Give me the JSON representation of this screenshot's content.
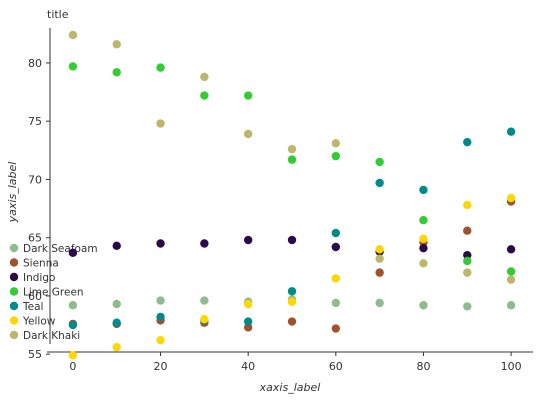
{
  "chart_data": {
    "type": "scatter",
    "title": "title",
    "xlabel": "xaxis_label",
    "ylabel": "yaxis_label",
    "xlim": [
      -5,
      105
    ],
    "ylim": [
      54.5,
      83
    ],
    "xticks": [
      0,
      20,
      40,
      60,
      80,
      100
    ],
    "yticks": [
      55,
      60,
      65,
      70,
      75,
      80
    ],
    "grid": false,
    "legend_placement": "left",
    "x": [
      0,
      10,
      20,
      30,
      40,
      50,
      60,
      70,
      80,
      90,
      100
    ],
    "series": [
      {
        "name": "Dark Seafoam",
        "color": "#8fbc8f",
        "values": [
          59.2,
          59.3,
          59.6,
          59.6,
          59.5,
          59.7,
          59.4,
          59.4,
          59.2,
          59.1,
          59.2
        ]
      },
      {
        "name": "Sienna",
        "color": "#a0522d",
        "values": [
          57.6,
          57.6,
          57.9,
          57.7,
          57.3,
          57.8,
          57.2,
          62.0,
          64.6,
          65.6,
          68.1
        ]
      },
      {
        "name": "Indigo",
        "color": "#2b0a4a",
        "values": [
          63.7,
          64.3,
          64.5,
          64.5,
          64.8,
          64.8,
          64.2,
          63.8,
          64.1,
          63.5,
          64.0
        ]
      },
      {
        "name": "Lime Green",
        "color": "#32cd32",
        "values": [
          79.7,
          79.2,
          79.6,
          77.2,
          77.2,
          71.7,
          72.0,
          71.5,
          66.5,
          63.0,
          62.1
        ]
      },
      {
        "name": "Teal",
        "color": "#008b8b",
        "values": [
          57.5,
          57.7,
          58.2,
          57.9,
          57.8,
          60.4,
          65.4,
          69.7,
          69.1,
          73.2,
          74.1
        ]
      },
      {
        "name": "Yellow",
        "color": "#ffd700",
        "values": [
          54.9,
          55.6,
          56.2,
          58.0,
          59.3,
          59.5,
          61.5,
          64.0,
          64.9,
          67.8,
          68.4
        ]
      },
      {
        "name": "Dark Khaki",
        "color": "#bdb76b",
        "values": [
          82.4,
          81.6,
          74.8,
          78.8,
          73.9,
          72.6,
          73.1,
          63.2,
          62.8,
          62.0,
          61.4
        ]
      }
    ]
  }
}
